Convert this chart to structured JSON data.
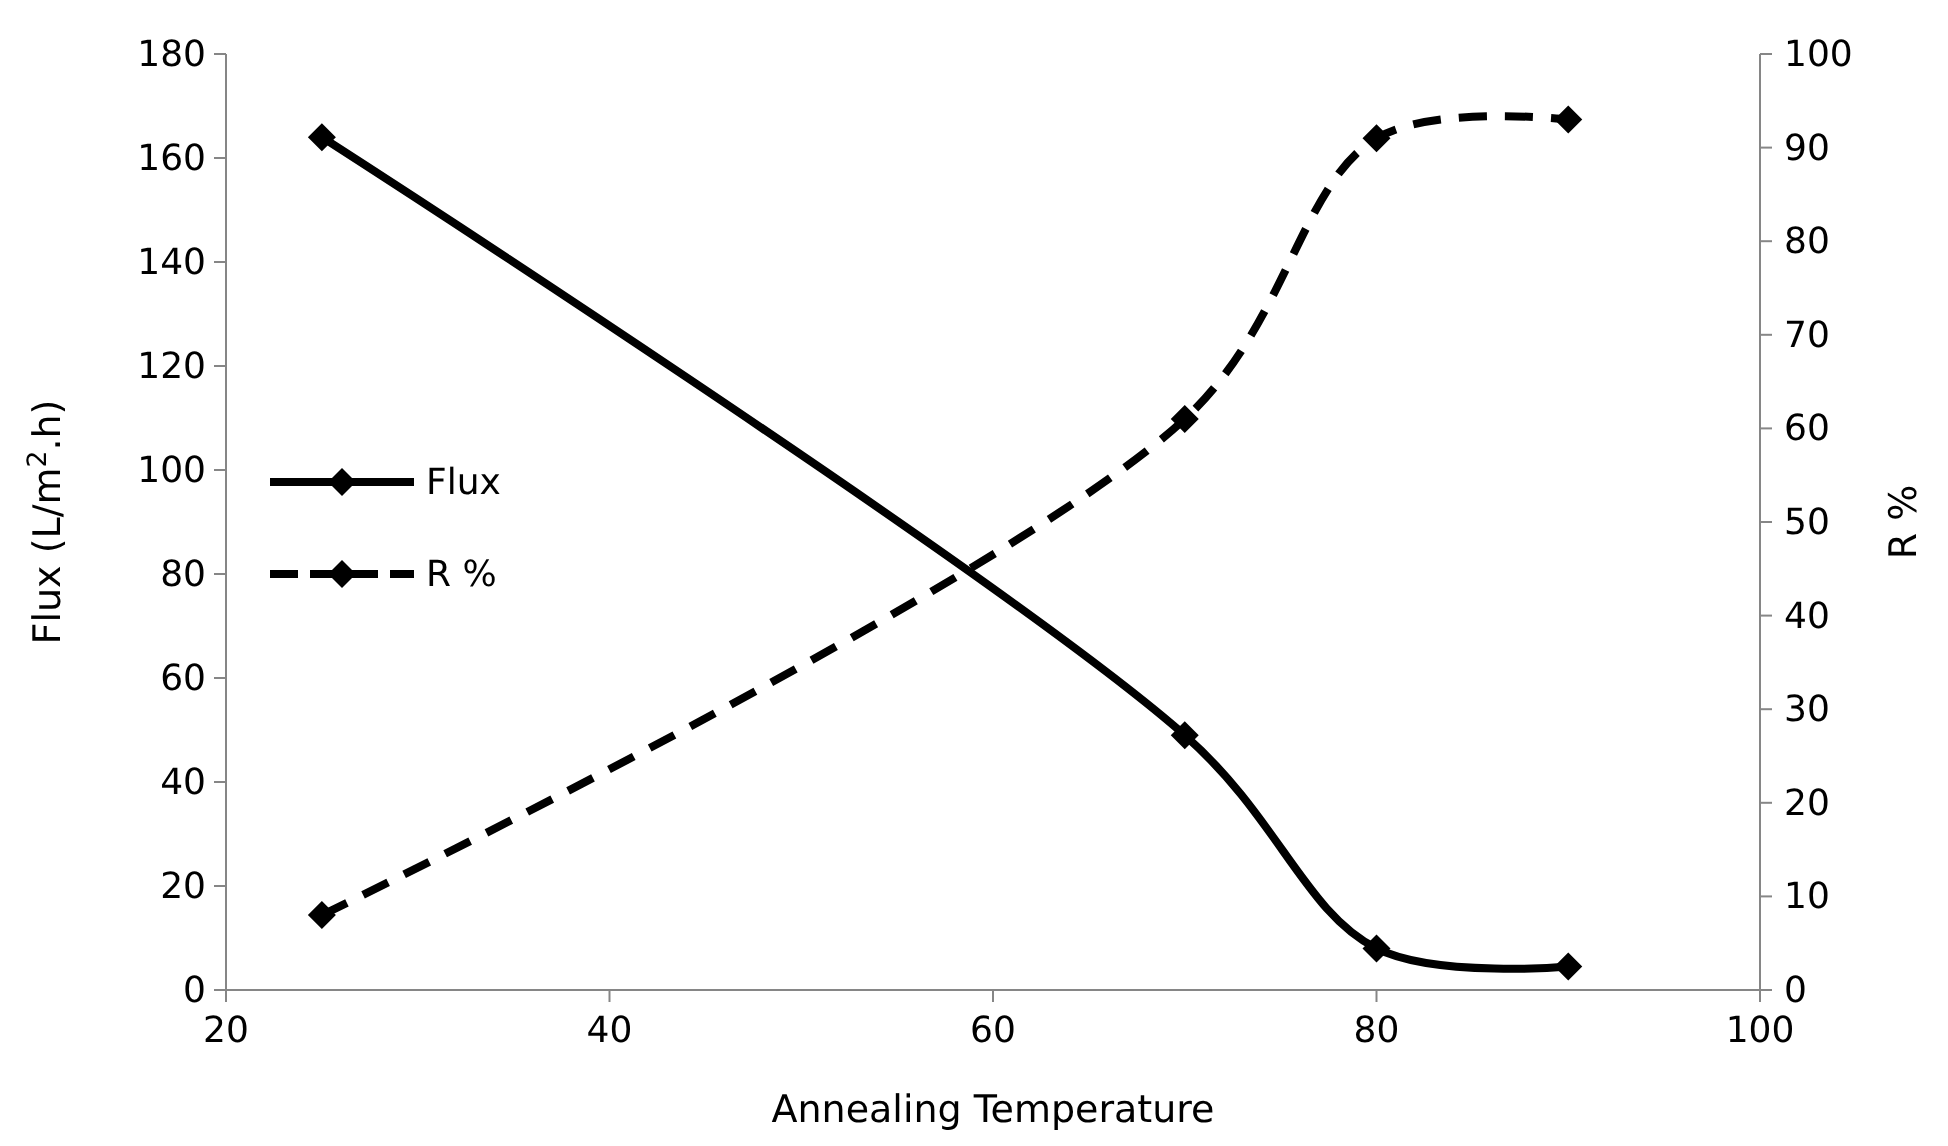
{
  "chart_data": {
    "type": "line",
    "xlabel": "Annealing Temperature",
    "ylabel": "Flux (L/m$^{2}$.h)",
    "y2label": "R %",
    "x": [
      25,
      70,
      80,
      90
    ],
    "series": [
      {
        "name": "Flux",
        "color": "#000000",
        "values": [
          164,
          49,
          8,
          4.5
        ],
        "line_style": "solid"
      },
      {
        "name": "R %",
        "color": "#000000",
        "values": [
          8,
          61,
          91,
          93
        ],
        "line_style": "dashed",
        "axis": "y2"
      }
    ],
    "xlim": [
      20,
      100
    ],
    "xticks": [
      20,
      40,
      60,
      80,
      100
    ],
    "ylim": [
      0,
      180
    ],
    "yticks": [
      0,
      20,
      40,
      60,
      80,
      100,
      120,
      140,
      160,
      180
    ],
    "y2lim": [
      0,
      100
    ],
    "y2ticks": [
      0,
      10,
      20,
      30,
      40,
      50,
      60,
      70,
      80,
      90,
      100
    ],
    "marker": "diamond",
    "legend": "left",
    "grid": false
  }
}
